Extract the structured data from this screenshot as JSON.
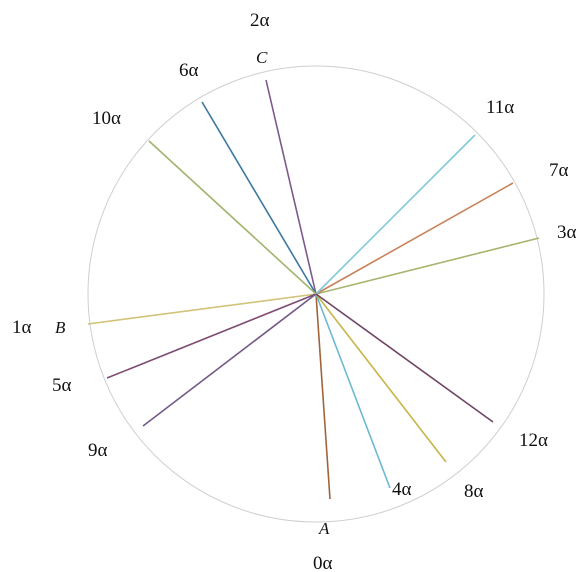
{
  "diagram": {
    "colors": {
      "circle": "#cfcfcf",
      "0": "#a0643c",
      "1": "#d2c378",
      "2": "#7d5a8c",
      "3": "#a5b46e",
      "4": "#6eb9d2",
      "5": "#7d4b73",
      "6": "#3c78a0",
      "7": "#c8825a",
      "8": "#c8b446",
      "9": "#735a87",
      "10": "#a0b46e",
      "11": "#82c8dc",
      "12": "#6e4664"
    },
    "rays": [
      {
        "k": 0,
        "label": "0α"
      },
      {
        "k": 1,
        "label": "1α"
      },
      {
        "k": 2,
        "label": "2α"
      },
      {
        "k": 3,
        "label": "3α"
      },
      {
        "k": 4,
        "label": "4α"
      },
      {
        "k": 5,
        "label": "5α"
      },
      {
        "k": 6,
        "label": "6α"
      },
      {
        "k": 7,
        "label": "7α"
      },
      {
        "k": 8,
        "label": "8α"
      },
      {
        "k": 9,
        "label": "9α"
      },
      {
        "k": 10,
        "label": "10α"
      },
      {
        "k": 11,
        "label": "11α"
      },
      {
        "k": 12,
        "label": "12α"
      }
    ],
    "points": {
      "A": "A",
      "B": "B",
      "C": "C"
    }
  }
}
